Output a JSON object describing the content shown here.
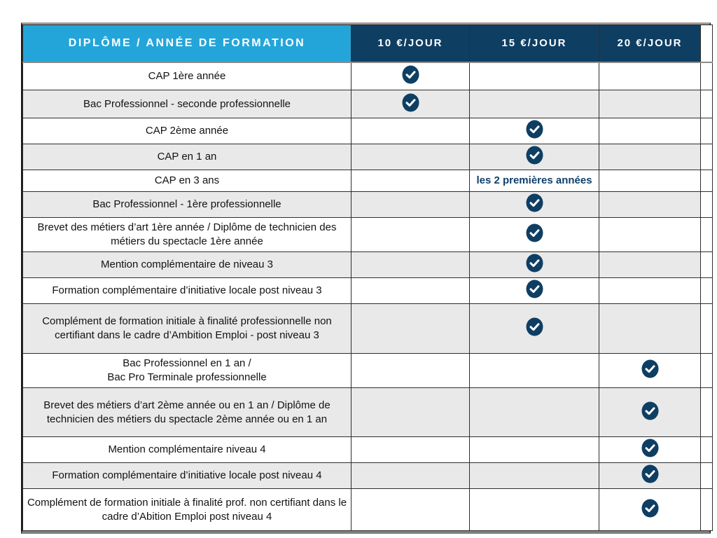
{
  "table": {
    "header": {
      "diploma_column": "DIPLÔME / ANNÉE DE FORMATION",
      "price_columns": [
        "10 €/JOUR",
        "15 €/JOUR",
        "20 €/JOUR"
      ]
    },
    "colors": {
      "header_cyan": "#23A5DA",
      "header_navy": "#0F3E63",
      "row_alternate": "#E9E9E9",
      "check_circle": "#0F3E63",
      "note_text": "#10406B"
    },
    "check_icon_name": "check-circle-icon",
    "rows": [
      {
        "label": "CAP 1ère année",
        "checks": {
          "10": true
        }
      },
      {
        "label": "Bac Professionnel - seconde professionnelle",
        "checks": {
          "10": true
        }
      },
      {
        "label": "CAP 2ème année",
        "checks": {
          "15": true
        }
      },
      {
        "label": "CAP en 1 an",
        "checks": {
          "15": true
        }
      },
      {
        "label": "CAP en 3 ans",
        "notes": {
          "15": "les 2 premières années"
        }
      },
      {
        "label": "Bac Professionnel - 1ère professionnelle",
        "checks": {
          "15": true
        }
      },
      {
        "label": "Brevet des métiers d’art 1ère année / Diplôme de technicien des métiers du spectacle 1ère année",
        "checks": {
          "15": true
        }
      },
      {
        "label": "Mention complémentaire de niveau 3",
        "checks": {
          "15": true
        }
      },
      {
        "label": "Formation complémentaire d’initiative locale post niveau 3",
        "checks": {
          "15": true
        }
      },
      {
        "label": "Complément de formation initiale à finalité professionnelle non certifiant dans le cadre d’Ambition Emploi - post niveau 3",
        "checks": {
          "15": true
        }
      },
      {
        "lines": [
          "Bac Professionnel en 1 an /",
          "Bac Pro  Terminale professionnelle"
        ],
        "checks": {
          "20": true
        }
      },
      {
        "label": "Brevet des métiers d’art 2ème année ou en 1 an / Diplôme de technicien des métiers du spectacle 2ème année ou en 1 an",
        "checks": {
          "20": true
        }
      },
      {
        "label": "Mention complémentaire niveau 4",
        "checks": {
          "20": true
        }
      },
      {
        "label": "Formation complémentaire d’initiative locale post niveau 4",
        "checks": {
          "20": true
        }
      },
      {
        "label": "Complément de formation initiale à finalité prof. non certifiant dans le cadre d’Abition Emploi post niveau 4",
        "checks": {
          "20": true
        }
      }
    ]
  }
}
